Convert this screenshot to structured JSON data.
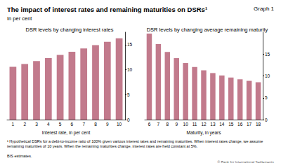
{
  "title": "The impact of interest rates and remaining maturities on DSRs¹",
  "graph_label": "Graph 1",
  "subtitle": "In per cent",
  "footnote": "¹ Hypothetical DSRs for a debt-to-income ratio of 100% given various interest rates and remaining maturities. When interest rates change, we assume remaining maturities of 10 years. When the remaining maturities change, interest rates are held constant at 5%.",
  "source": "BIS estimates.",
  "copyright": "© Bank for International Settlements",
  "chart_data": [
    {
      "type": "bar",
      "title": "DSR levels by changing interest rates",
      "x_label": "Interest rate, in per cent",
      "categories": [
        "1",
        "2",
        "3",
        "4",
        "5",
        "6",
        "7",
        "8",
        "9",
        "10"
      ],
      "values": [
        10.56,
        11.13,
        11.72,
        12.33,
        12.95,
        13.59,
        14.24,
        14.9,
        15.58,
        16.27
      ],
      "color": "#c27a8c",
      "ylim": [
        0,
        17.5
      ],
      "yticks": [
        0,
        5,
        10,
        15
      ],
      "grid": false
    },
    {
      "type": "bar",
      "title": "DSR levels by changing average remaining maturity",
      "x_label": "Maturity, in years",
      "categories": [
        "6",
        "7",
        "8",
        "9",
        "10",
        "11",
        "12",
        "13",
        "14",
        "15",
        "16",
        "17",
        "18"
      ],
      "values": [
        19.7,
        17.28,
        15.47,
        14.07,
        12.95,
        12.04,
        11.28,
        10.65,
        10.1,
        9.63,
        9.23,
        8.87,
        8.55
      ],
      "color": "#c27a8c",
      "ylim": [
        0,
        20
      ],
      "yticks": [
        0,
        5,
        10,
        15
      ],
      "grid": false
    }
  ]
}
